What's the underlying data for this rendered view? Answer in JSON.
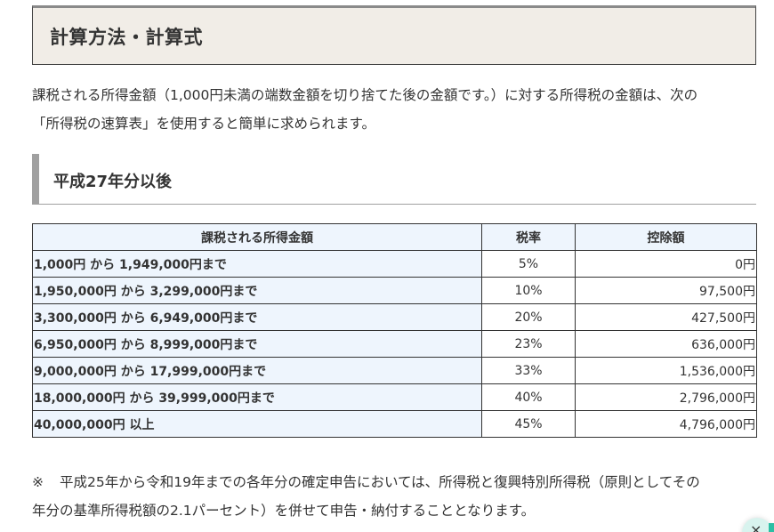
{
  "section": {
    "title": "計算方法・計算式"
  },
  "intro": {
    "line1": "課税される所得金額（1,000円未満の端数金額を切り捨てた後の金額です。）に対する所得税の金額は、次の",
    "line2": "「所得税の速算表」を使用すると簡単に求められます。"
  },
  "subsection": {
    "title": "平成27年分以後"
  },
  "table": {
    "headers": [
      "課税される所得金額",
      "税率",
      "控除額"
    ],
    "rows": [
      {
        "range": "1,000円 から 1,949,000円まで",
        "rate": "5%",
        "deduction": "0円"
      },
      {
        "range": "1,950,000円 から 3,299,000円まで",
        "rate": "10%",
        "deduction": "97,500円"
      },
      {
        "range": "3,300,000円 から 6,949,000円まで",
        "rate": "20%",
        "deduction": "427,500円"
      },
      {
        "range": "6,950,000円 から 8,999,000円まで",
        "rate": "23%",
        "deduction": "636,000円"
      },
      {
        "range": "9,000,000円 から 17,999,000円まで",
        "rate": "33%",
        "deduction": "1,536,000円"
      },
      {
        "range": "18,000,000円 から 39,999,000円まで",
        "rate": "40%",
        "deduction": "2,796,000円"
      },
      {
        "range": "40,000,000円 以上",
        "rate": "45%",
        "deduction": "4,796,000円"
      }
    ]
  },
  "note": {
    "mark": "※",
    "line1": "平成25年から令和19年までの各年分の確定申告においては、所得税と復興特別所得税（原則としてその",
    "line2": "年分の基準所得税額の2.1パーセント）を併せて申告・納付することとなります。"
  },
  "widget": {
    "close_glyph": "×",
    "accent_color": "#2bbfa4"
  },
  "colors": {
    "header_bg": "#f1ede7",
    "table_header_bg": "#eef5fd",
    "border": "#333333",
    "accent_bar": "#a0a0a0"
  }
}
